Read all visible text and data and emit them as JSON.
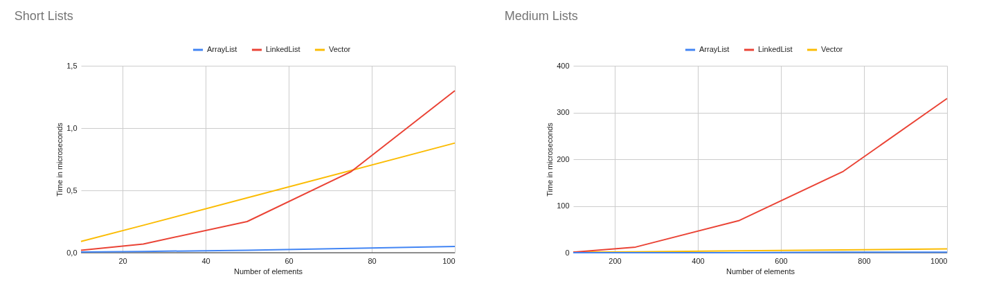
{
  "chart_data": [
    {
      "type": "line",
      "title": "Short Lists",
      "xlabel": "Number of elements",
      "ylabel": "Time in microseconds",
      "x": [
        10,
        25,
        50,
        75,
        100
      ],
      "xlim": [
        10,
        100
      ],
      "xticks": [
        20,
        40,
        60,
        80,
        100
      ],
      "ylim": [
        0,
        1.5
      ],
      "yticks": [
        {
          "value": 0,
          "label": "0,0"
        },
        {
          "value": 0.5,
          "label": "0,5"
        },
        {
          "value": 1,
          "label": "1,0"
        },
        {
          "value": 1.5,
          "label": "1,5"
        }
      ],
      "grid": true,
      "legend": "top",
      "marker": "none",
      "line_style": "solid",
      "series": [
        {
          "name": "ArrayList",
          "color": "#4285f4",
          "values": [
            0.005,
            0.01,
            0.02,
            0.035,
            0.05
          ]
        },
        {
          "name": "LinkedList",
          "color": "#ea4335",
          "values": [
            0.02,
            0.07,
            0.25,
            0.65,
            1.3
          ]
        },
        {
          "name": "Vector",
          "color": "#fbbc04",
          "values": [
            0.09,
            0.22,
            0.44,
            0.66,
            0.88
          ]
        }
      ]
    },
    {
      "type": "line",
      "title": "Medium Lists",
      "xlabel": "Number of elements",
      "ylabel": "Time in microseconds",
      "x": [
        100,
        250,
        500,
        750,
        1000
      ],
      "xlim": [
        100,
        1000
      ],
      "xticks": [
        200,
        400,
        600,
        800,
        1000
      ],
      "ylim": [
        0,
        400
      ],
      "yticks": [
        0,
        100,
        200,
        300,
        400
      ],
      "grid": true,
      "legend": "top",
      "marker": "none",
      "line_style": "solid",
      "series": [
        {
          "name": "ArrayList",
          "color": "#4285f4",
          "values": [
            0,
            0,
            0,
            1,
            1
          ]
        },
        {
          "name": "LinkedList",
          "color": "#ea4335",
          "values": [
            1,
            12,
            69,
            174,
            330
          ]
        },
        {
          "name": "Vector",
          "color": "#fbbc04",
          "values": [
            1,
            2,
            4,
            6,
            8
          ]
        }
      ]
    }
  ]
}
